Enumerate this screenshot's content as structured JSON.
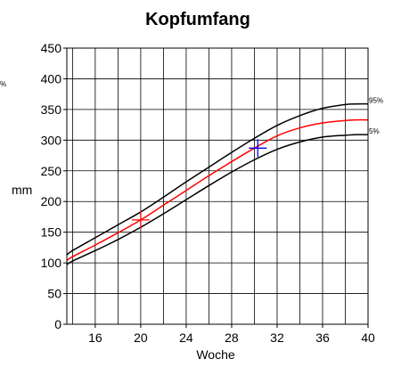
{
  "chart_data": {
    "type": "line",
    "title": "Kopfumfang",
    "xlabel": "Woche",
    "ylabel": "mm",
    "xlim": [
      13.5,
      40
    ],
    "ylim": [
      0,
      450
    ],
    "x_ticks": [
      16,
      20,
      24,
      28,
      32,
      36,
      40
    ],
    "y_ticks": [
      0,
      50,
      100,
      150,
      200,
      250,
      300,
      350,
      400,
      450
    ],
    "x_grid": [
      14,
      16,
      18,
      20,
      22,
      24,
      26,
      28,
      30,
      32,
      34,
      36,
      38,
      40
    ],
    "grid": true,
    "left_stub": "%",
    "x": [
      13.5,
      14,
      16,
      18,
      20,
      22,
      24,
      26,
      28,
      30,
      32,
      34,
      36,
      38,
      39,
      40
    ],
    "series": [
      {
        "name": "95%",
        "color": "#000000",
        "values": [
          113,
          120,
          141,
          162,
          183,
          207,
          232,
          256,
          280,
          303,
          324,
          340,
          352,
          358,
          359,
          359
        ]
      },
      {
        "name": "",
        "color": "#ff0000",
        "values": [
          104,
          110,
          129,
          149,
          170,
          194,
          218,
          242,
          265,
          287,
          307,
          320,
          328,
          332,
          333,
          333
        ]
      },
      {
        "name": "5%",
        "color": "#000000",
        "values": [
          97,
          103,
          120,
          138,
          158,
          180,
          203,
          226,
          248,
          268,
          285,
          297,
          305,
          308,
          309,
          309
        ]
      }
    ],
    "markers": [
      {
        "x": 20,
        "y": 170,
        "color": "#ff0000"
      },
      {
        "x": 30.3,
        "y": 287,
        "color": "#0000ff"
      }
    ]
  }
}
